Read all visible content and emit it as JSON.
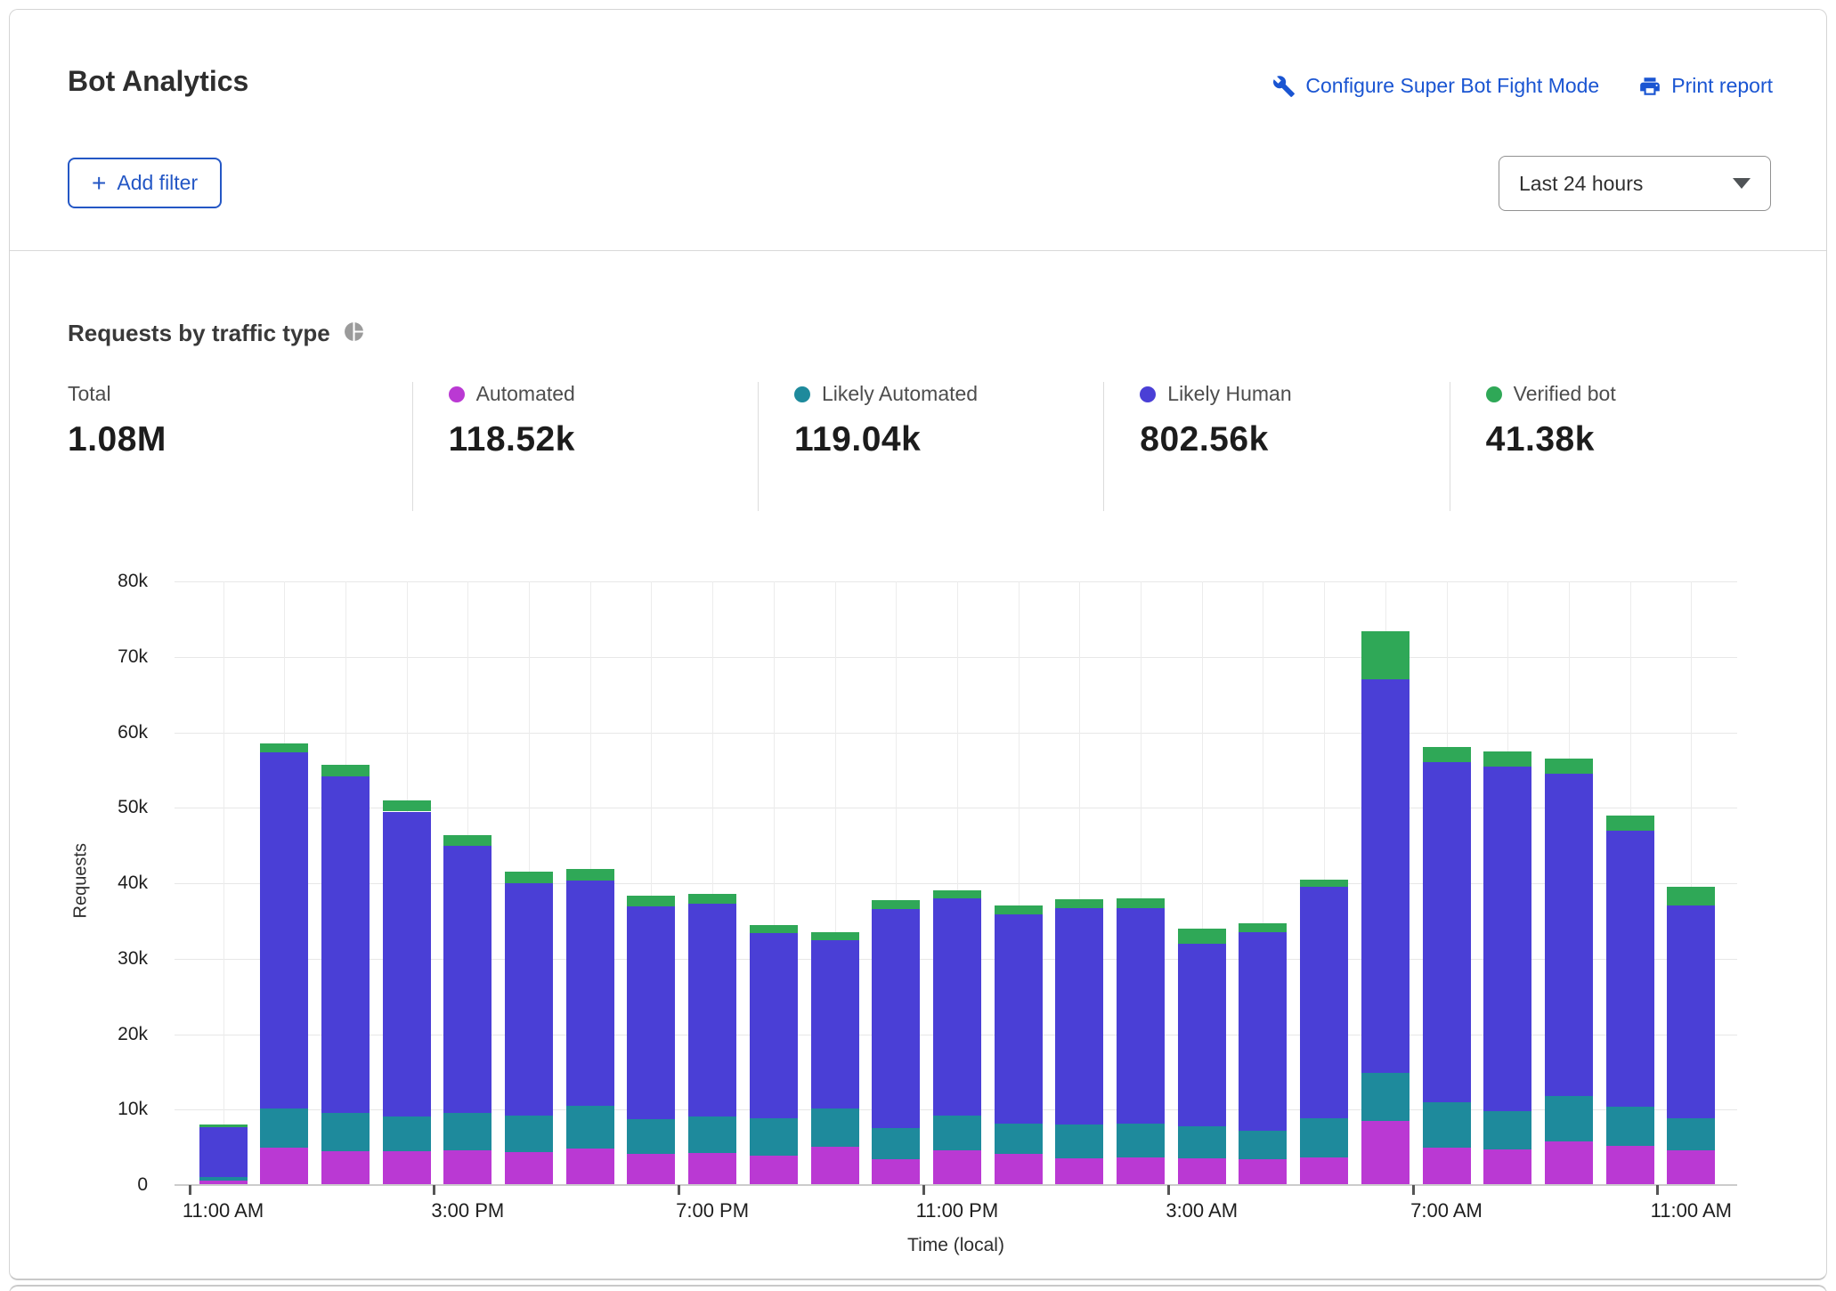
{
  "header": {
    "title": "Bot Analytics",
    "configure_link": "Configure Super Bot Fight Mode",
    "print_link": "Print report",
    "add_filter_label": "Add filter",
    "time_range": "Last 24 hours",
    "link_color": "#1a55d2"
  },
  "section": {
    "title": "Requests by traffic type"
  },
  "stats": [
    {
      "label": "Total",
      "value": "1.08M",
      "color": null
    },
    {
      "label": "Automated",
      "value": "118.52k",
      "color": "#ba39d3"
    },
    {
      "label": "Likely Automated",
      "value": "119.04k",
      "color": "#1e8a9c"
    },
    {
      "label": "Likely Human",
      "value": "802.56k",
      "color": "#4a3fd6"
    },
    {
      "label": "Verified bot",
      "value": "41.38k",
      "color": "#2fa857"
    }
  ],
  "chart_data": {
    "type": "bar",
    "stacked": true,
    "title": "Requests by traffic type",
    "xlabel": "Time (local)",
    "ylabel": "Requests",
    "ylim": [
      0,
      80000
    ],
    "grid": true,
    "unit": "thousands of requests per hour",
    "ytick_labels": [
      "0",
      "10k",
      "20k",
      "30k",
      "40k",
      "50k",
      "60k",
      "70k",
      "80k"
    ],
    "categories": [
      "11:00 AM",
      "12:00 PM",
      "1:00 PM",
      "2:00 PM",
      "3:00 PM",
      "4:00 PM",
      "5:00 PM",
      "6:00 PM",
      "7:00 PM",
      "8:00 PM",
      "9:00 PM",
      "10:00 PM",
      "11:00 PM",
      "12:00 AM",
      "1:00 AM",
      "2:00 AM",
      "3:00 AM",
      "4:00 AM",
      "5:00 AM",
      "6:00 AM",
      "7:00 AM",
      "8:00 AM",
      "9:00 AM",
      "10:00 AM",
      "11:00 AM"
    ],
    "xtick_every": 4,
    "series": [
      {
        "name": "Automated",
        "color": "#ba39d3",
        "values_k": [
          0.6,
          5.0,
          4.5,
          4.5,
          4.6,
          4.4,
          4.8,
          4.1,
          4.3,
          3.9,
          5.1,
          3.4,
          4.6,
          4.1,
          3.5,
          3.7,
          3.5,
          3.4,
          3.6,
          8.5,
          5.0,
          4.7,
          5.8,
          5.2,
          4.6
        ]
      },
      {
        "name": "Likely Automated",
        "color": "#1e8a9c",
        "values_k": [
          0.5,
          5.2,
          5.0,
          4.6,
          5.0,
          4.8,
          5.7,
          4.6,
          4.8,
          5.0,
          5.1,
          4.2,
          4.6,
          4.1,
          4.5,
          4.5,
          4.3,
          3.8,
          5.3,
          6.4,
          6.0,
          5.1,
          6.0,
          5.2,
          4.3
        ]
      },
      {
        "name": "Likely Human",
        "color": "#4a3fd6",
        "values_k": [
          6.6,
          47.2,
          44.7,
          40.4,
          35.3,
          30.8,
          29.9,
          28.2,
          28.2,
          24.5,
          22.3,
          29.0,
          28.8,
          27.7,
          28.7,
          28.5,
          24.2,
          26.3,
          30.6,
          52.1,
          45.0,
          45.7,
          42.7,
          36.6,
          28.1
        ]
      },
      {
        "name": "Verified bot",
        "color": "#2fa857",
        "values_k": [
          0.3,
          1.1,
          1.5,
          1.5,
          1.5,
          1.5,
          1.5,
          1.4,
          1.3,
          1.0,
          1.0,
          1.2,
          1.1,
          1.2,
          1.2,
          1.3,
          2.0,
          1.2,
          1.0,
          6.4,
          2.0,
          2.0,
          2.0,
          2.0,
          2.5
        ]
      }
    ]
  }
}
